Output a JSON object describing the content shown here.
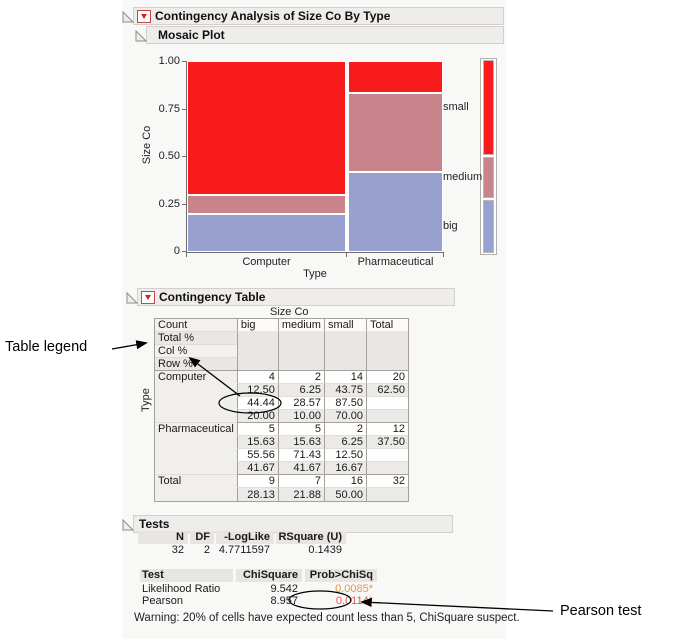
{
  "outline": {
    "main_title": "Contingency Analysis of Size Co By Type",
    "mosaic_title": "Mosaic Plot",
    "table_title": "Contingency Table",
    "tests_title": "Tests"
  },
  "chart_data": {
    "type": "mosaic",
    "title": "Mosaic Plot",
    "xlabel": "Type",
    "ylabel": "Size Co",
    "y_ticks": [
      "1.00",
      "0.75",
      "0.50",
      "0.25",
      "0"
    ],
    "x_categories": [
      {
        "label": "Computer",
        "share": 0.625,
        "stack": [
          {
            "cat": "big",
            "p": 0.2
          },
          {
            "cat": "medium",
            "p": 0.1
          },
          {
            "cat": "small",
            "p": 0.7
          }
        ]
      },
      {
        "label": "Pharmaceutical",
        "share": 0.375,
        "stack": [
          {
            "cat": "big",
            "p": 0.4167
          },
          {
            "cat": "medium",
            "p": 0.4166
          },
          {
            "cat": "small",
            "p": 0.1667
          }
        ]
      }
    ],
    "legend": [
      {
        "label": "small",
        "share": 0.5
      },
      {
        "label": "medium",
        "share": 0.21875
      },
      {
        "label": "big",
        "share": 0.28125
      }
    ],
    "colors": {
      "small": "#f81b1b",
      "medium": "#c9838a",
      "big": "#98a0cf"
    },
    "ylim": [
      0,
      1
    ],
    "legend_position": "right"
  },
  "contingency_table": {
    "column_group_label": "Size Co",
    "row_group_label": "Type",
    "cell_legend": [
      "Count",
      "Total %",
      "Col %",
      "Row %"
    ],
    "columns": [
      "big",
      "medium",
      "small",
      "Total"
    ],
    "rows": [
      {
        "label": "Computer",
        "subrows": [
          [
            "4",
            "2",
            "14",
            "20"
          ],
          [
            "12.50",
            "6.25",
            "43.75",
            "62.50"
          ],
          [
            "44.44",
            "28.57",
            "87.50",
            ""
          ],
          [
            "20.00",
            "10.00",
            "70.00",
            ""
          ]
        ]
      },
      {
        "label": "Pharmaceutical",
        "subrows": [
          [
            "5",
            "5",
            "2",
            "12"
          ],
          [
            "15.63",
            "15.63",
            "6.25",
            "37.50"
          ],
          [
            "55.56",
            "71.43",
            "12.50",
            ""
          ],
          [
            "41.67",
            "41.67",
            "16.67",
            ""
          ]
        ]
      },
      {
        "label": "Total",
        "subrows": [
          [
            "9",
            "7",
            "16",
            "32"
          ],
          [
            "28.13",
            "21.88",
            "50.00",
            ""
          ]
        ]
      }
    ]
  },
  "tests": {
    "summary": {
      "headers": [
        "N",
        "DF",
        "-LogLike",
        "RSquare (U)"
      ],
      "values": [
        "32",
        "2",
        "4.7711597",
        "0.1439"
      ]
    },
    "table": {
      "headers": [
        "Test",
        "ChiSquare",
        "Prob>ChiSq"
      ],
      "rows": [
        {
          "test": "Likelihood Ratio",
          "chisquare": "9.542",
          "prob": "0.0085*"
        },
        {
          "test": "Pearson",
          "chisquare": "8.957",
          "prob": "0.0114*"
        }
      ]
    },
    "significance_colors": {
      "likelihood_prob": "#e6973e",
      "pearson_prob": "#e25757"
    },
    "warning": "Warning: 20% of cells have expected count less than 5, ChiSquare suspect."
  },
  "annotations": {
    "table_legend_label": "Table legend",
    "pearson_label": "Pearson test"
  }
}
